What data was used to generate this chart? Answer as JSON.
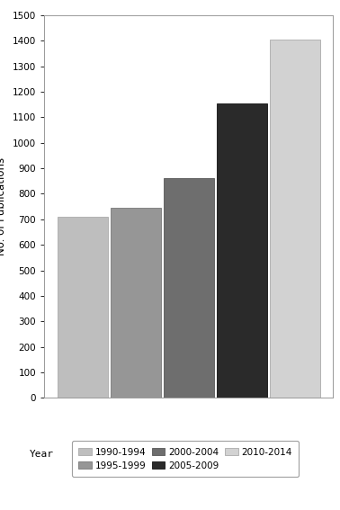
{
  "categories": [
    "1990-1994",
    "1995-1999",
    "2000-2004",
    "2005-2009",
    "2010-2014"
  ],
  "values": [
    710,
    745,
    860,
    1155,
    1405
  ],
  "bar_colors": [
    "#bebebe",
    "#969696",
    "#6e6e6e",
    "#2a2a2a",
    "#d2d2d2"
  ],
  "bar_edgecolors": [
    "#aaaaaa",
    "#787878",
    "#585858",
    "#111111",
    "#aaaaaa"
  ],
  "ylabel": "No. of Publications",
  "ylim": [
    0,
    1500
  ],
  "yticks": [
    0,
    100,
    200,
    300,
    400,
    500,
    600,
    700,
    800,
    900,
    1000,
    1100,
    1200,
    1300,
    1400,
    1500
  ],
  "legend_title": "Year",
  "legend_labels": [
    "1990-1994",
    "1995-1999",
    "2000-2004",
    "2005-2009",
    "2010-2014"
  ],
  "legend_colors": [
    "#bebebe",
    "#969696",
    "#6e6e6e",
    "#2a2a2a",
    "#d2d2d2"
  ],
  "legend_edgecolors": [
    "#aaaaaa",
    "#787878",
    "#585858",
    "#111111",
    "#aaaaaa"
  ],
  "background_color": "#ffffff",
  "bar_width": 0.95
}
